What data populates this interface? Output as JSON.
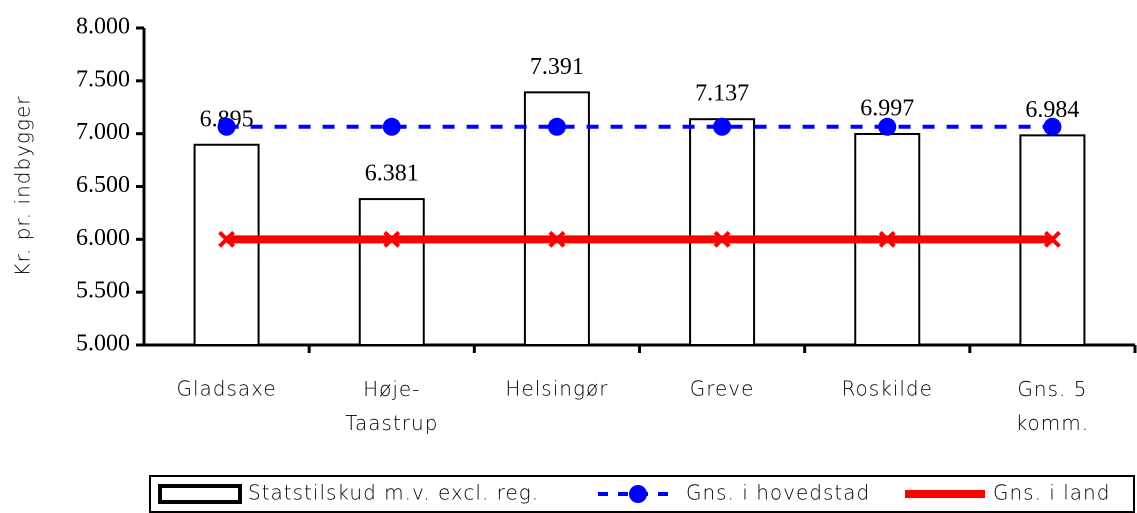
{
  "chart_data": {
    "type": "bar",
    "y_axis_label": "Kr. pr. indbygger",
    "categories": [
      "Gladsaxe",
      "Høje-\nTaastrup",
      "Helsingør",
      "Greve",
      "Roskilde",
      "Gns. 5\nkomm."
    ],
    "series": [
      {
        "name": "Statstilskud m.v. excl. reg.",
        "type": "bar",
        "color": "#ffffff",
        "values": [
          6895,
          6381,
          7391,
          7137,
          6997,
          6984
        ],
        "value_labels": [
          "6.895",
          "6.381",
          "7.391",
          "7.137",
          "6.997",
          "6.984"
        ]
      },
      {
        "name": "Gns. i hovedstad",
        "type": "line",
        "color": "#0000ff",
        "values": [
          7065,
          7065,
          7065,
          7065,
          7065,
          7065
        ]
      },
      {
        "name": "Gns. i land",
        "type": "line",
        "color": "#ff0000",
        "values": [
          6000,
          6000,
          6000,
          6000,
          6000,
          6000
        ]
      }
    ],
    "ylim": [
      5000,
      8000
    ],
    "yticks": [
      {
        "value": 5000,
        "label": "5.000"
      },
      {
        "value": 5500,
        "label": "5.500"
      },
      {
        "value": 6000,
        "label": "6.000"
      },
      {
        "value": 6500,
        "label": "6.500"
      },
      {
        "value": 7000,
        "label": "7.000"
      },
      {
        "value": 7500,
        "label": "7.500"
      },
      {
        "value": 8000,
        "label": "8.000"
      }
    ],
    "legend": "bottom"
  }
}
